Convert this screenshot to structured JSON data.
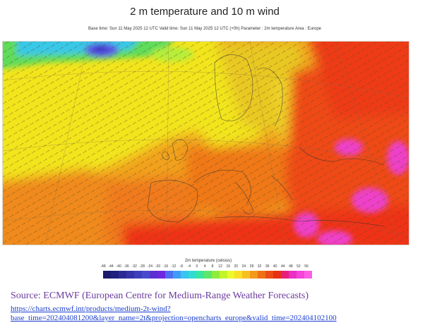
{
  "title": "2 m temperature and 10 m wind",
  "subtitle": "Base time: Sun 11 May 2025 12 UTC Valid time: Sun 11 May 2025 12 UTC (+0h) Parameter : 2m temperature Area : Europe",
  "legend": {
    "title": "2m temperature (celsius)",
    "ticks": [
      "-48",
      "-44",
      "-40",
      "-36",
      "-32",
      "-28",
      "-24",
      "-20",
      "-16",
      "-12",
      "-8",
      "-4",
      "0",
      "4",
      "8",
      "12",
      "16",
      "20",
      "24",
      "28",
      "32",
      "36",
      "40",
      "44",
      "48",
      "52",
      "56"
    ],
    "colors": [
      "#1a1a6e",
      "#20207f",
      "#2a2a95",
      "#3434a8",
      "#3f3fbb",
      "#4a4acd",
      "#5a2fd0",
      "#6e27e0",
      "#4d6ef0",
      "#3f9cf5",
      "#36c4f0",
      "#30dcd2",
      "#38e6a0",
      "#5ee66a",
      "#8fec3c",
      "#c3f52a",
      "#ecf92c",
      "#f8e025",
      "#f7c020",
      "#f49a1a",
      "#f07016",
      "#ec4c14",
      "#e83012",
      "#e6207a",
      "#ea2ec6",
      "#f542d8",
      "#ff5ce6"
    ]
  },
  "map": {
    "colors": {
      "sea_yellow": "#f2e51f",
      "sea_orange": "#f1a21d",
      "land_orange": "#f07a1a",
      "hot_red": "#ef3319",
      "very_hot_magenta": "#ef3fc9",
      "cold_green": "#5fdc5a",
      "cold_blue": "#5a55e6",
      "cold_cyan": "#37c8e8"
    }
  },
  "source": {
    "text": "Source: ECMWF (European Centre for Medium-Range Weather Forecasts)",
    "link": "https://charts.ecmwf.int/products/medium-2t-wind?base_time=202404081200&layer_name=2t&projection=opencharts_europe&valid_time=202404102100"
  }
}
